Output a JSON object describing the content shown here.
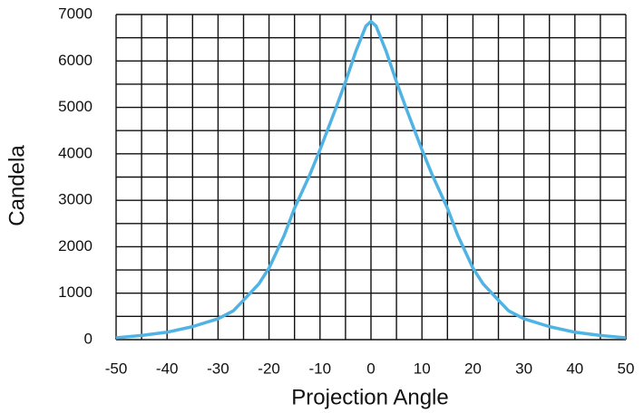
{
  "chart_data": {
    "type": "line",
    "x_label": "Projection Angle",
    "y_label": "Candela",
    "x": [
      -50,
      -45,
      -40,
      -35,
      -30,
      -27,
      -25,
      -22,
      -20,
      -17,
      -15,
      -12,
      -10,
      -7,
      -5,
      -3,
      -1,
      0,
      1,
      3,
      5,
      7,
      10,
      12,
      15,
      17,
      20,
      22,
      25,
      27,
      30,
      35,
      40,
      45,
      50
    ],
    "series": [
      {
        "name": "Candela",
        "color": "#4fb3e3",
        "values": [
          40,
          90,
          160,
          280,
          450,
          620,
          850,
          1200,
          1540,
          2250,
          2830,
          3550,
          4090,
          4950,
          5550,
          6200,
          6750,
          6850,
          6750,
          6200,
          5550,
          4950,
          4090,
          3550,
          2830,
          2250,
          1540,
          1200,
          850,
          620,
          450,
          280,
          160,
          90,
          40
        ]
      }
    ],
    "xlim": [
      -50,
      50
    ],
    "xticks": [
      -50,
      -40,
      -30,
      -20,
      -10,
      0,
      10,
      20,
      30,
      40,
      50
    ],
    "ylim": [
      0,
      7000
    ],
    "yticks": [
      0,
      1000,
      2000,
      3000,
      4000,
      5000,
      6000,
      7000
    ],
    "xgrid": [
      -50,
      -45,
      -40,
      -35,
      -30,
      -25,
      -20,
      -15,
      -10,
      -5,
      0,
      5,
      10,
      15,
      20,
      25,
      30,
      35,
      40,
      45,
      50
    ],
    "ygrid": [
      0,
      500,
      1000,
      1500,
      2000,
      2500,
      3000,
      3500,
      4000,
      4500,
      5000,
      5500,
      6000,
      6500,
      7000
    ],
    "grid": true
  }
}
